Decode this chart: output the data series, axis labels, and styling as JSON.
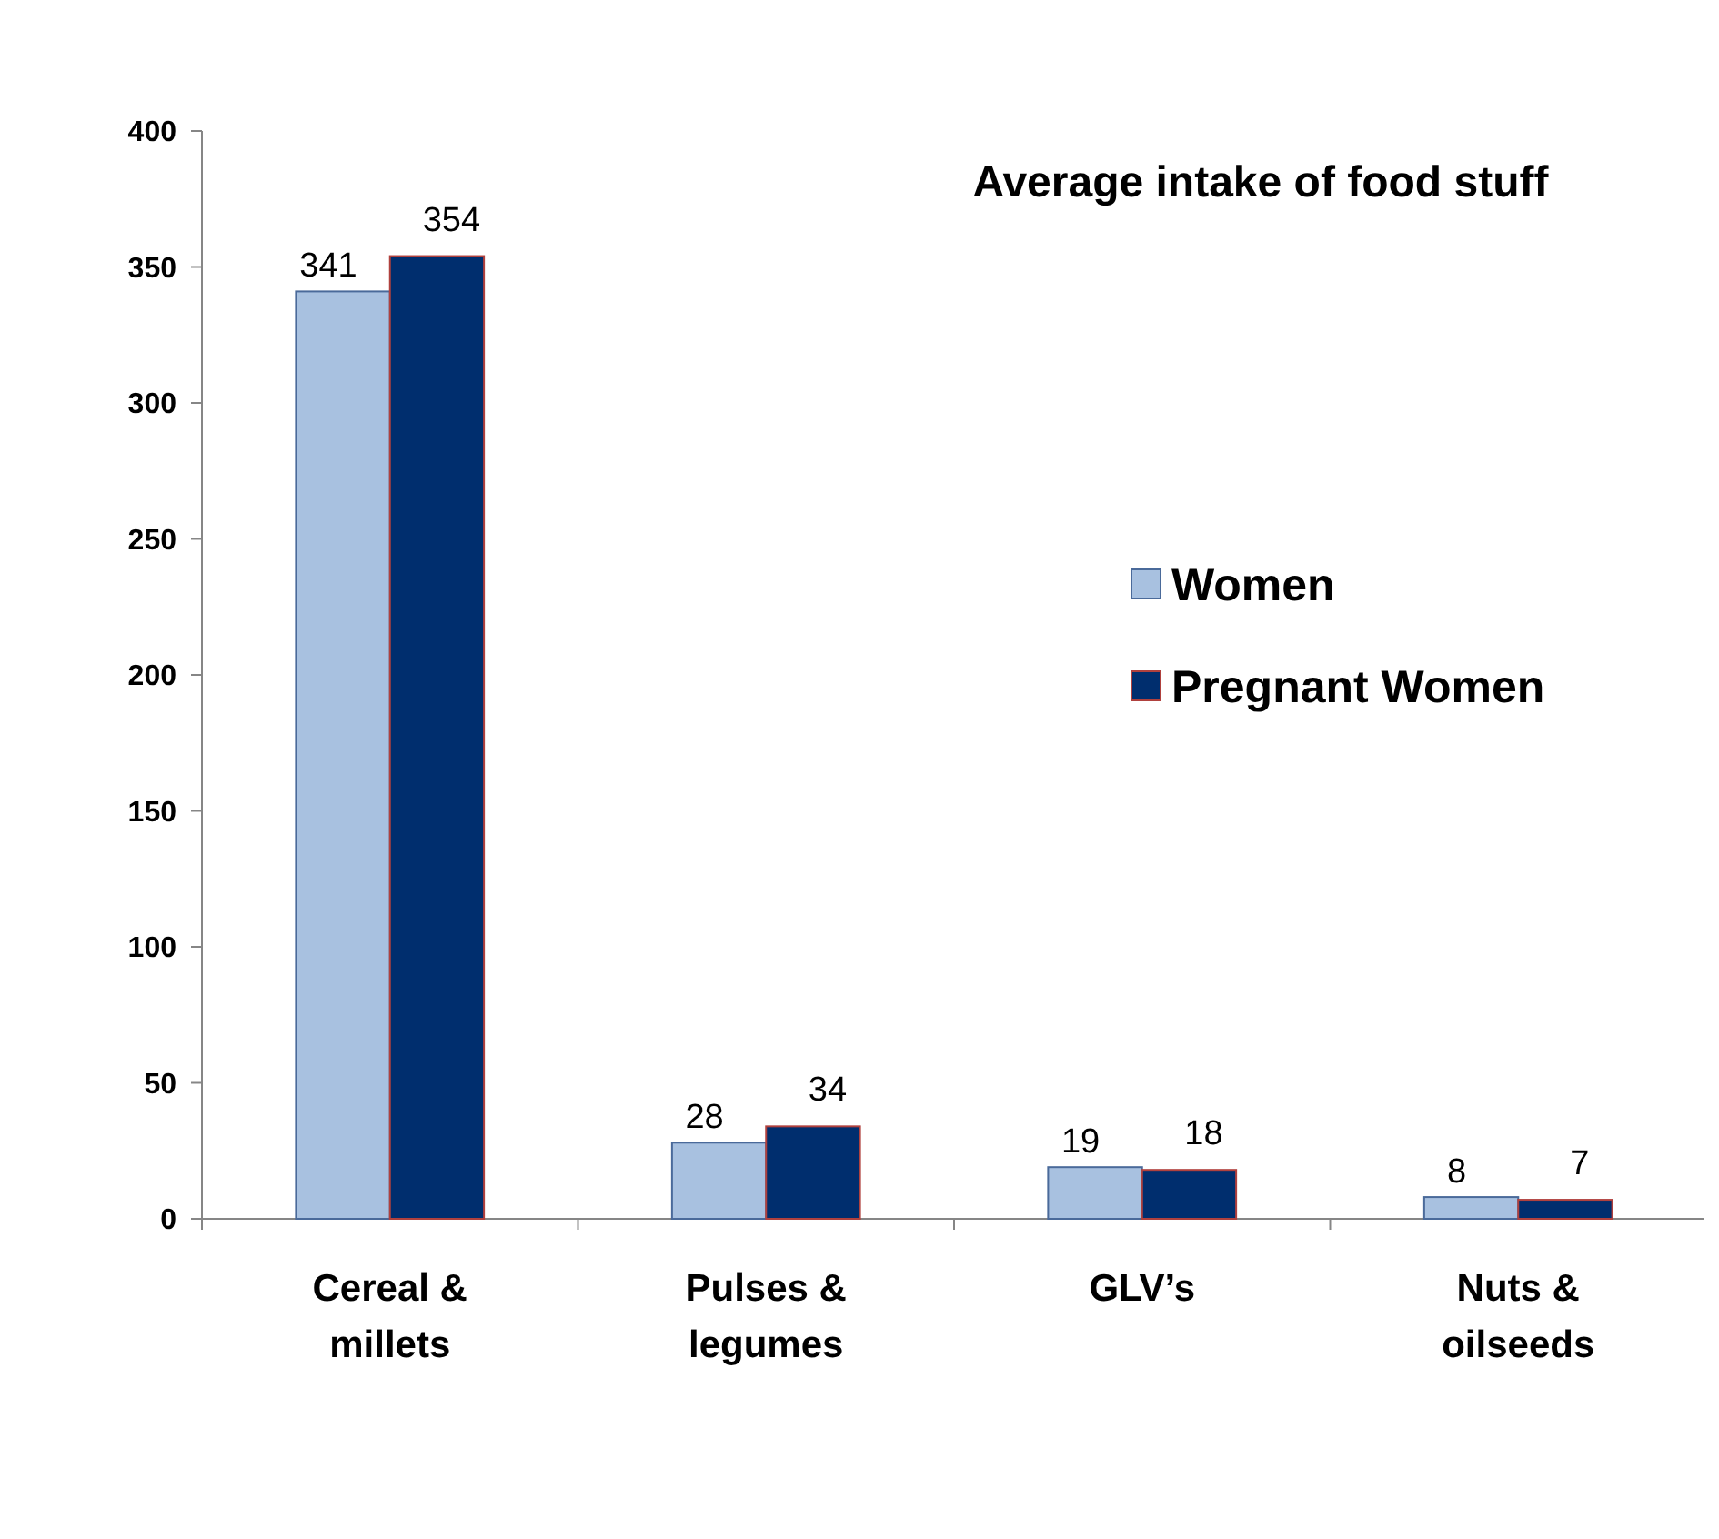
{
  "chart_data": {
    "type": "bar",
    "title": "Average intake of food stuff",
    "categories": [
      "Cereal & millets",
      "Pulses & legumes",
      "GLV’s",
      "Nuts & oilseeds"
    ],
    "series": [
      {
        "name": "Women",
        "color": "#a8c1e0",
        "values": [
          341,
          28,
          19,
          8
        ]
      },
      {
        "name": "Pregnant Women",
        "color": "#002e6e",
        "values": [
          354,
          34,
          18,
          7
        ]
      }
    ],
    "ylim": [
      0,
      400
    ],
    "yticks": [
      0,
      50,
      100,
      150,
      200,
      250,
      300,
      350,
      400
    ],
    "grid": false,
    "legend": "right",
    "data_labels": true
  }
}
